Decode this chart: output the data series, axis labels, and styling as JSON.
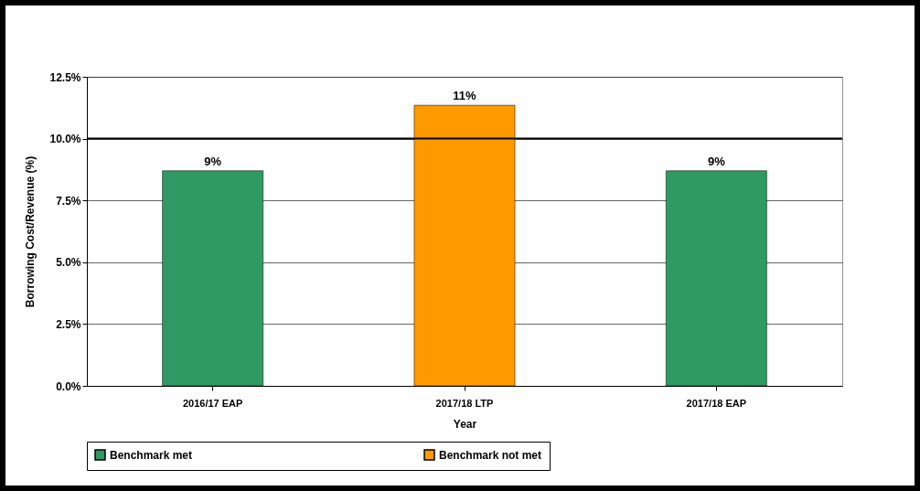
{
  "chart_data": {
    "type": "bar",
    "xlabel": "Year",
    "ylabel": "Borrowing Cost/Revenue (%)",
    "categories": [
      "2016/17 EAP",
      "2017/18 LTP",
      "2017/18 EAP"
    ],
    "series": [
      {
        "name": "Benchmark met",
        "color": "#2e9a62",
        "values": [
          8.7,
          null,
          8.7
        ],
        "value_labels": [
          "9%",
          null,
          "9%"
        ]
      },
      {
        "name": "Benchmark not met",
        "color": "#ff9900",
        "values": [
          null,
          11.35,
          null
        ],
        "value_labels": [
          null,
          "11%",
          null
        ]
      }
    ],
    "ylim": [
      0,
      12.5
    ],
    "yticks": [
      {
        "value": 0,
        "label": "0.0%"
      },
      {
        "value": 2.5,
        "label": "2.5%"
      },
      {
        "value": 5,
        "label": "5.0%"
      },
      {
        "value": 7.5,
        "label": "7.5%"
      },
      {
        "value": 10,
        "label": "10.0%"
      },
      {
        "value": 12.5,
        "label": "12.5%"
      }
    ],
    "ref_lines": [
      {
        "axis": "y",
        "value": 10,
        "color": "#000000"
      }
    ],
    "grid": "y",
    "legend": "bottom"
  }
}
